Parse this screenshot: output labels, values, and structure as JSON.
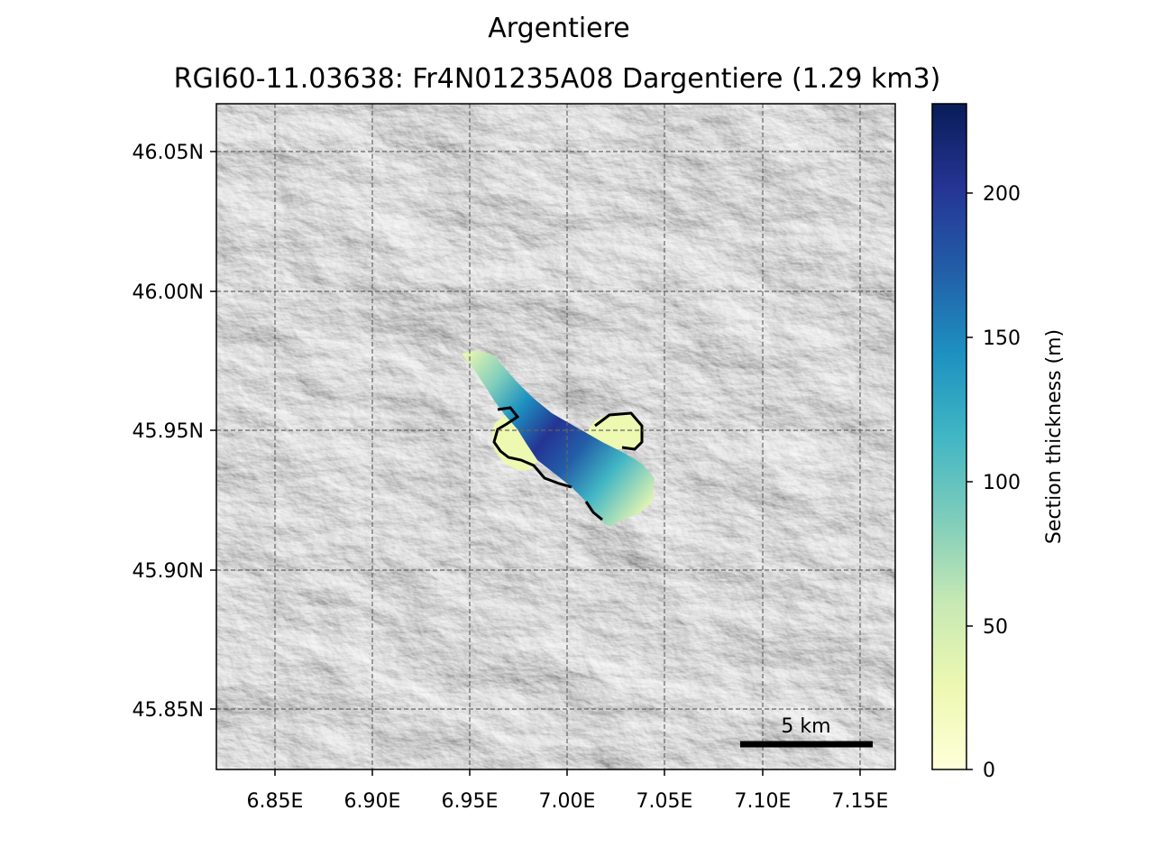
{
  "title": "Argentiere",
  "subtitle": "RGI60-11.03638: Fr4N01235A08 Dargentiere (1.29 km3)",
  "map": {
    "lon_ticks": [
      "6.85E",
      "6.90E",
      "6.95E",
      "7.00E",
      "7.05E",
      "7.10E",
      "7.15E"
    ],
    "lat_ticks": [
      "46.05N",
      "46.00N",
      "45.95N",
      "45.90N",
      "45.85N"
    ],
    "lon_range": [
      6.82,
      7.168
    ],
    "lat_range": [
      45.828,
      46.067
    ],
    "gridlines": true,
    "basemap": "hillshade",
    "scalebar_label": "5 km"
  },
  "colorbar": {
    "label": "Section thickness (m)",
    "ticks": [
      "0",
      "50",
      "100",
      "150",
      "200"
    ],
    "range": [
      0,
      230
    ],
    "colormap": "YlGnBu",
    "colors": [
      "#ffffd9",
      "#edf8b1",
      "#c7e9b4",
      "#7fcdbb",
      "#41b6c4",
      "#1d91c0",
      "#225ea8",
      "#253494",
      "#081d58"
    ]
  },
  "glacier": {
    "name": "Dargentiere",
    "rgi_id": "RGI60-11.03638",
    "volume_km3": 1.29,
    "max_section_thickness_m": 230
  }
}
